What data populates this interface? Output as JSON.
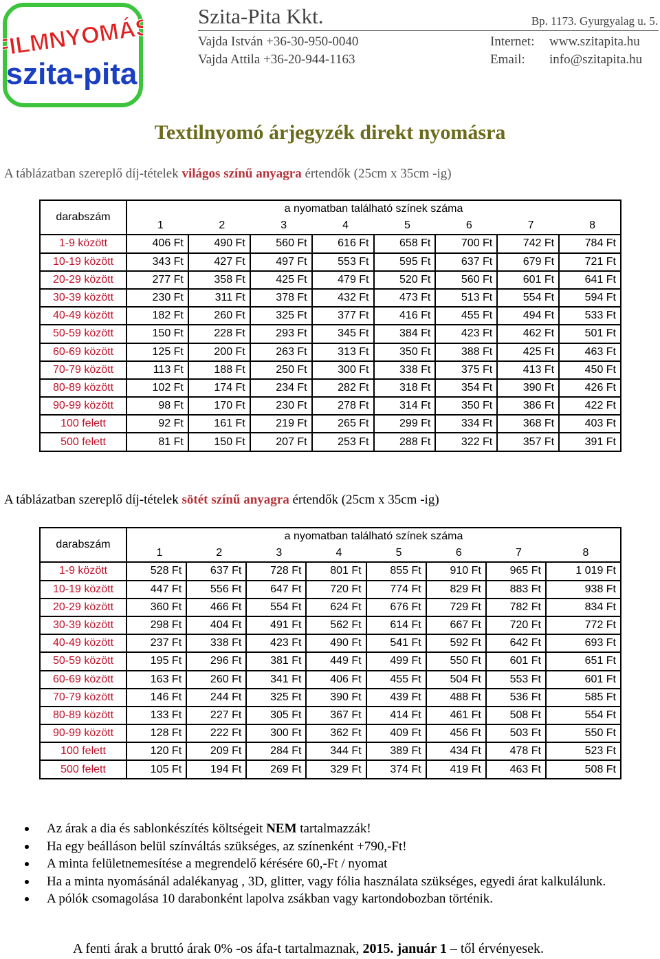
{
  "logo": {
    "line1": "FILMNYOMÁS",
    "line2": "szita-pita"
  },
  "header": {
    "company": "Szita-Pita Kkt.",
    "address": "Bp. 1173. Gyurgyalag u. 5.",
    "contacts": [
      {
        "name": "Vajda István +36-30-950-0040",
        "label": "Internet:",
        "value": "www.szitapita.hu"
      },
      {
        "name": "Vajda Attila +36-20-944-1163",
        "label": "Email:",
        "value": "info@szitapita.hu"
      }
    ]
  },
  "title": "Textilnyomó árjegyzék direkt nyomásra",
  "intro_light": {
    "pre": "A táblázatban szereplő díj-tételek ",
    "highlight": "világos színű anyagra",
    "post": " értendők (25cm x 35cm -ig)"
  },
  "intro_dark": {
    "pre": "A táblázatban szereplő díj-tételek ",
    "highlight": "sötét színű anyagra",
    "post": " értendők (25cm x 35cm -ig)"
  },
  "table_header": {
    "qty": "darabszám",
    "colors": "a nyomatban található színek száma",
    "color_counts": [
      "1",
      "2",
      "3",
      "4",
      "5",
      "6",
      "7",
      "8"
    ]
  },
  "light_rows": [
    {
      "qty": "1-9 között",
      "prices": [
        "406 Ft",
        "490 Ft",
        "560 Ft",
        "616 Ft",
        "658 Ft",
        "700 Ft",
        "742 Ft",
        "784 Ft"
      ]
    },
    {
      "qty": "10-19 között",
      "prices": [
        "343 Ft",
        "427 Ft",
        "497 Ft",
        "553 Ft",
        "595 Ft",
        "637 Ft",
        "679 Ft",
        "721 Ft"
      ]
    },
    {
      "qty": "20-29 között",
      "prices": [
        "277 Ft",
        "358 Ft",
        "425 Ft",
        "479 Ft",
        "520 Ft",
        "560 Ft",
        "601 Ft",
        "641 Ft"
      ]
    },
    {
      "qty": "30-39 között",
      "prices": [
        "230 Ft",
        "311 Ft",
        "378 Ft",
        "432 Ft",
        "473 Ft",
        "513 Ft",
        "554 Ft",
        "594 Ft"
      ]
    },
    {
      "qty": "40-49 között",
      "prices": [
        "182 Ft",
        "260 Ft",
        "325 Ft",
        "377 Ft",
        "416 Ft",
        "455 Ft",
        "494 Ft",
        "533 Ft"
      ]
    },
    {
      "qty": "50-59 között",
      "prices": [
        "150 Ft",
        "228 Ft",
        "293 Ft",
        "345 Ft",
        "384 Ft",
        "423 Ft",
        "462 Ft",
        "501 Ft"
      ]
    },
    {
      "qty": "60-69 között",
      "prices": [
        "125 Ft",
        "200 Ft",
        "263 Ft",
        "313 Ft",
        "350 Ft",
        "388 Ft",
        "425 Ft",
        "463 Ft"
      ]
    },
    {
      "qty": "70-79 között",
      "prices": [
        "113 Ft",
        "188 Ft",
        "250 Ft",
        "300 Ft",
        "338 Ft",
        "375 Ft",
        "413 Ft",
        "450 Ft"
      ]
    },
    {
      "qty": "80-89 között",
      "prices": [
        "102 Ft",
        "174 Ft",
        "234 Ft",
        "282 Ft",
        "318 Ft",
        "354 Ft",
        "390 Ft",
        "426 Ft"
      ]
    },
    {
      "qty": "90-99 között",
      "prices": [
        "98 Ft",
        "170 Ft",
        "230 Ft",
        "278 Ft",
        "314 Ft",
        "350 Ft",
        "386 Ft",
        "422 Ft"
      ]
    },
    {
      "qty": "100 felett",
      "prices": [
        "92 Ft",
        "161 Ft",
        "219 Ft",
        "265 Ft",
        "299 Ft",
        "334 Ft",
        "368 Ft",
        "403 Ft"
      ]
    },
    {
      "qty": "500 felett",
      "prices": [
        "81 Ft",
        "150 Ft",
        "207 Ft",
        "253 Ft",
        "288 Ft",
        "322 Ft",
        "357 Ft",
        "391 Ft"
      ]
    }
  ],
  "dark_rows": [
    {
      "qty": "1-9 között",
      "prices": [
        "528 Ft",
        "637 Ft",
        "728 Ft",
        "801 Ft",
        "855 Ft",
        "910 Ft",
        "965 Ft",
        "1 019 Ft"
      ]
    },
    {
      "qty": "10-19 között",
      "prices": [
        "447 Ft",
        "556 Ft",
        "647 Ft",
        "720 Ft",
        "774 Ft",
        "829 Ft",
        "883 Ft",
        "938 Ft"
      ]
    },
    {
      "qty": "20-29 között",
      "prices": [
        "360 Ft",
        "466 Ft",
        "554 Ft",
        "624 Ft",
        "676 Ft",
        "729 Ft",
        "782 Ft",
        "834 Ft"
      ]
    },
    {
      "qty": "30-39 között",
      "prices": [
        "298 Ft",
        "404 Ft",
        "491 Ft",
        "562 Ft",
        "614 Ft",
        "667 Ft",
        "720 Ft",
        "772 Ft"
      ]
    },
    {
      "qty": "40-49 között",
      "prices": [
        "237 Ft",
        "338 Ft",
        "423 Ft",
        "490 Ft",
        "541 Ft",
        "592 Ft",
        "642 Ft",
        "693 Ft"
      ]
    },
    {
      "qty": "50-59 között",
      "prices": [
        "195 Ft",
        "296 Ft",
        "381 Ft",
        "449 Ft",
        "499 Ft",
        "550 Ft",
        "601 Ft",
        "651 Ft"
      ]
    },
    {
      "qty": "60-69 között",
      "prices": [
        "163 Ft",
        "260 Ft",
        "341 Ft",
        "406 Ft",
        "455 Ft",
        "504 Ft",
        "553 Ft",
        "601 Ft"
      ]
    },
    {
      "qty": "70-79 között",
      "prices": [
        "146 Ft",
        "244 Ft",
        "325 Ft",
        "390 Ft",
        "439 Ft",
        "488 Ft",
        "536 Ft",
        "585 Ft"
      ]
    },
    {
      "qty": "80-89 között",
      "prices": [
        "133 Ft",
        "227 Ft",
        "305 Ft",
        "367 Ft",
        "414 Ft",
        "461 Ft",
        "508 Ft",
        "554 Ft"
      ]
    },
    {
      "qty": "90-99 között",
      "prices": [
        "128 Ft",
        "222 Ft",
        "300 Ft",
        "362 Ft",
        "409 Ft",
        "456 Ft",
        "503 Ft",
        "550 Ft"
      ]
    },
    {
      "qty": "100 felett",
      "prices": [
        "120 Ft",
        "209 Ft",
        "284 Ft",
        "344 Ft",
        "389 Ft",
        "434 Ft",
        "478 Ft",
        "523 Ft"
      ]
    },
    {
      "qty": "500 felett",
      "prices": [
        "105 Ft",
        "194 Ft",
        "269 Ft",
        "329 Ft",
        "374 Ft",
        "419 Ft",
        "463 Ft",
        "508 Ft"
      ]
    }
  ],
  "notes": {
    "n1_pre": "Az árak a dia és sablonkészítés költségeit ",
    "n1_bold": "NEM",
    "n1_post": " tartalmazzák!",
    "n2": "Ha egy beálláson belül színváltás szükséges, az színenként +790,-Ft!",
    "n3": "A minta felületnemesítése a megrendelő kérésére 60,-Ft / nyomat",
    "n4": "Ha a minta nyomásánál adalékanyag , 3D, glitter, vagy fólia használata szükséges, egyedi árat kalkulálunk.",
    "n5": "A pólók csomagolása 10 darabonként lapolva zsákban vagy kartondobozban történik."
  },
  "footer": {
    "pre": "A fenti árak a bruttó árak 0% -os áfa-t tartalmaznak, ",
    "bold": "2015. január 1",
    "post": " – től érvényesek."
  },
  "colors": {
    "title": "#6b6b1c",
    "highlight": "#b5343a",
    "qty_red": "#c0102a",
    "logo_green": "#3cc43c",
    "logo_red": "#e02020",
    "logo_blue": "#1a3fc0"
  }
}
